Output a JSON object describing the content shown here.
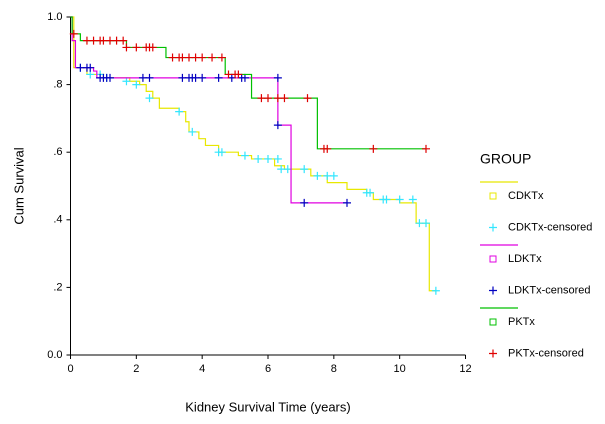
{
  "chart_data": {
    "type": "survival",
    "x_label": "Kidney Survival Time (years)",
    "y_label": "Cum Survival",
    "legend_title": "GROUP",
    "xlim": [
      0,
      12
    ],
    "xticks": [
      0,
      2,
      4,
      6,
      8,
      10,
      12
    ],
    "ylim": [
      0,
      1
    ],
    "yticks": [
      {
        "value": 0,
        "label": "0.0"
      },
      {
        "value": 0.2,
        "label": ".2"
      },
      {
        "value": 0.4,
        "label": ".4"
      },
      {
        "value": 0.6,
        "label": ".6"
      },
      {
        "value": 0.8,
        "label": ".8"
      },
      {
        "value": 1,
        "label": "1.0"
      }
    ],
    "series": [
      {
        "name": "CDKTx",
        "color": "#e8e800",
        "style": "step",
        "x": [
          0,
          0.1,
          0.5,
          1.0,
          1.8,
          2.1,
          2.3,
          2.5,
          2.7,
          3.3,
          3.5,
          3.6,
          3.9,
          4.1,
          4.5,
          5.1,
          5.5,
          6.2,
          6.5,
          7.3,
          7.8,
          8.4,
          9.0,
          9.2,
          10.0,
          10.5,
          10.9,
          11.1
        ],
        "values": [
          1,
          0.85,
          0.83,
          0.82,
          0.81,
          0.8,
          0.78,
          0.76,
          0.73,
          0.72,
          0.69,
          0.66,
          0.64,
          0.62,
          0.6,
          0.59,
          0.58,
          0.56,
          0.55,
          0.53,
          0.51,
          0.49,
          0.48,
          0.46,
          0.45,
          0.39,
          0.19,
          0.19
        ]
      },
      {
        "name": "CDKTx-censored",
        "color": "#33e6ff",
        "style": "plus",
        "x": [
          0.3,
          0.6,
          0.9,
          1.1,
          1.7,
          2.0,
          2.4,
          3.3,
          3.7,
          4.5,
          4.6,
          5.3,
          5.7,
          6.0,
          6.3,
          6.4,
          6.6,
          7.1,
          7.5,
          7.8,
          8.0,
          9.0,
          9.1,
          9.5,
          9.6,
          10.0,
          10.4,
          10.6,
          10.8,
          11.1
        ],
        "values": [
          0.85,
          0.83,
          0.83,
          0.82,
          0.81,
          0.8,
          0.76,
          0.72,
          0.66,
          0.6,
          0.6,
          0.59,
          0.58,
          0.58,
          0.58,
          0.55,
          0.55,
          0.55,
          0.53,
          0.53,
          0.53,
          0.48,
          0.48,
          0.46,
          0.46,
          0.46,
          0.46,
          0.39,
          0.39,
          0.19
        ]
      },
      {
        "name": "LDKTx",
        "color": "#e000e0",
        "style": "step",
        "x": [
          0,
          0.05,
          0.15,
          0.7,
          0.8,
          6.3,
          6.7,
          8.4
        ],
        "values": [
          1,
          0.93,
          0.85,
          0.84,
          0.82,
          0.68,
          0.45,
          0.45
        ]
      },
      {
        "name": "LDKTx-censored",
        "color": "#0000c0",
        "style": "plus",
        "x": [
          0.3,
          0.5,
          0.6,
          0.9,
          1.0,
          1.1,
          1.2,
          2.2,
          2.4,
          3.4,
          3.6,
          3.7,
          3.8,
          4.0,
          4.5,
          4.9,
          5.2,
          5.3,
          6.3,
          6.3,
          7.1,
          8.4
        ],
        "values": [
          0.85,
          0.85,
          0.85,
          0.82,
          0.82,
          0.82,
          0.82,
          0.82,
          0.82,
          0.82,
          0.82,
          0.82,
          0.82,
          0.82,
          0.82,
          0.82,
          0.82,
          0.82,
          0.82,
          0.68,
          0.45,
          0.45
        ]
      },
      {
        "name": "PKTx",
        "color": "#00c000",
        "style": "step",
        "x": [
          0,
          0.05,
          0.3,
          1.7,
          2.9,
          4.7,
          5.5,
          7.5,
          10.8
        ],
        "values": [
          1,
          0.95,
          0.93,
          0.91,
          0.88,
          0.83,
          0.76,
          0.61,
          0.61
        ]
      },
      {
        "name": "PKTx-censored",
        "color": "#e00000",
        "style": "plus",
        "x": [
          0.1,
          0.5,
          0.7,
          0.9,
          1.0,
          1.2,
          1.4,
          1.6,
          1.7,
          2.0,
          2.3,
          2.4,
          2.5,
          3.1,
          3.3,
          3.4,
          3.6,
          3.8,
          4.0,
          4.3,
          4.6,
          4.8,
          5.0,
          5.1,
          5.8,
          6.0,
          6.3,
          6.5,
          7.2,
          7.7,
          7.8,
          9.2,
          10.8
        ],
        "values": [
          0.95,
          0.93,
          0.93,
          0.93,
          0.93,
          0.93,
          0.93,
          0.93,
          0.91,
          0.91,
          0.91,
          0.91,
          0.91,
          0.88,
          0.88,
          0.88,
          0.88,
          0.88,
          0.88,
          0.88,
          0.88,
          0.83,
          0.83,
          0.83,
          0.76,
          0.76,
          0.76,
          0.76,
          0.76,
          0.61,
          0.61,
          0.61,
          0.61
        ]
      }
    ]
  }
}
